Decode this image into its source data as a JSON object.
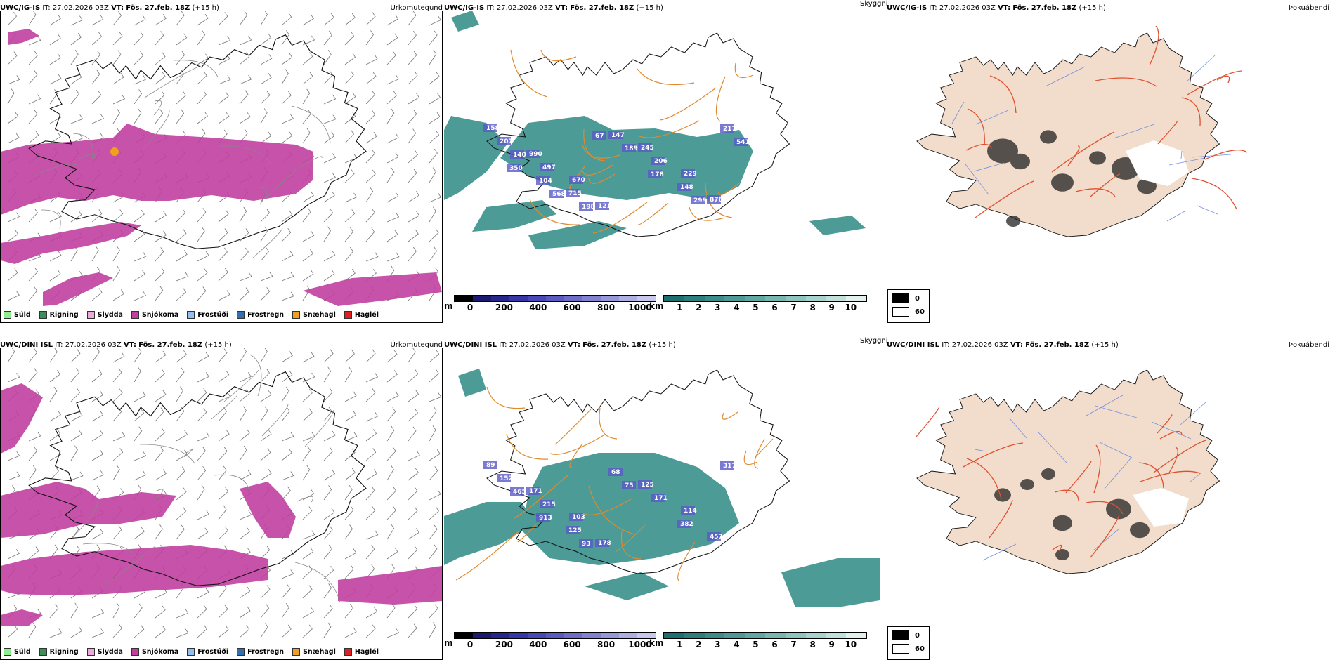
{
  "rows": [
    {
      "model": "UWC/IG-IS",
      "it_label": "IT:",
      "it_value": "27.02.2026 03Z",
      "vt_label": "VT:",
      "vt_value": "Fös. 27.feb. 18Z",
      "lead": "(+15 h)",
      "snow_labels": [
        "158",
        "990",
        "670",
        "121",
        "245",
        "229",
        "876",
        "207",
        "497",
        "715",
        "147",
        "206",
        "148",
        "217",
        "140",
        "104",
        "198",
        "189",
        "178",
        "299",
        "541",
        "350",
        "568",
        "67"
      ]
    },
    {
      "model": "UWC/DINI ISL",
      "it_label": "IT:",
      "it_value": "27.02.2026 03Z",
      "vt_label": "VT:",
      "vt_value": "Fös. 27.feb. 18Z",
      "lead": "(+15 h)",
      "snow_labels": [
        "89",
        "171",
        "103",
        "178",
        "125",
        "114",
        "457",
        "152",
        "215",
        "125",
        "68",
        "171",
        "382",
        "317",
        "465",
        "913",
        "93",
        "75"
      ]
    }
  ],
  "titles": {
    "precip": "Úrkomutegund",
    "visibility": "Skyggni",
    "fog": "Þokuábendi"
  },
  "precip_legend": [
    {
      "label": "Súld",
      "color": "#90ee90"
    },
    {
      "label": "Rigning",
      "color": "#3a8f5a"
    },
    {
      "label": "Slydda",
      "color": "#f0a8d8"
    },
    {
      "label": "Snjókoma",
      "color": "#c040a0"
    },
    {
      "label": "Frostúði",
      "color": "#90c0f0"
    },
    {
      "label": "Frostregn",
      "color": "#3070b0"
    },
    {
      "label": "Snæhagl",
      "color": "#f0a020"
    },
    {
      "label": "Haglél",
      "color": "#e02020"
    }
  ],
  "snow_colorbar": {
    "unit": "m",
    "ticks": [
      "0",
      "200",
      "400",
      "600",
      "800",
      "1000"
    ],
    "colors": [
      "#000000",
      "#1a1a6e",
      "#26268c",
      "#3636a8",
      "#4848b8",
      "#5a5ac0",
      "#6e6ec8",
      "#8282d0",
      "#9898d8",
      "#b0b0e0",
      "#c8c8ea"
    ]
  },
  "visibility_colorbar": {
    "unit": "km",
    "ticks": [
      "1",
      "2",
      "3",
      "4",
      "5",
      "6",
      "7",
      "8",
      "9",
      "10"
    ],
    "colors": [
      "#1e7070",
      "#2e7e7e",
      "#3c8c8a",
      "#4e9a96",
      "#62a8a2",
      "#78b6b0",
      "#90c4be",
      "#a8d2cc",
      "#c2e0da",
      "#e2f0ee"
    ]
  },
  "cloud_legend": {
    "items": [
      {
        "value": "0",
        "color": "#000000"
      },
      {
        "value": "60",
        "color": "#ffffff"
      }
    ]
  }
}
